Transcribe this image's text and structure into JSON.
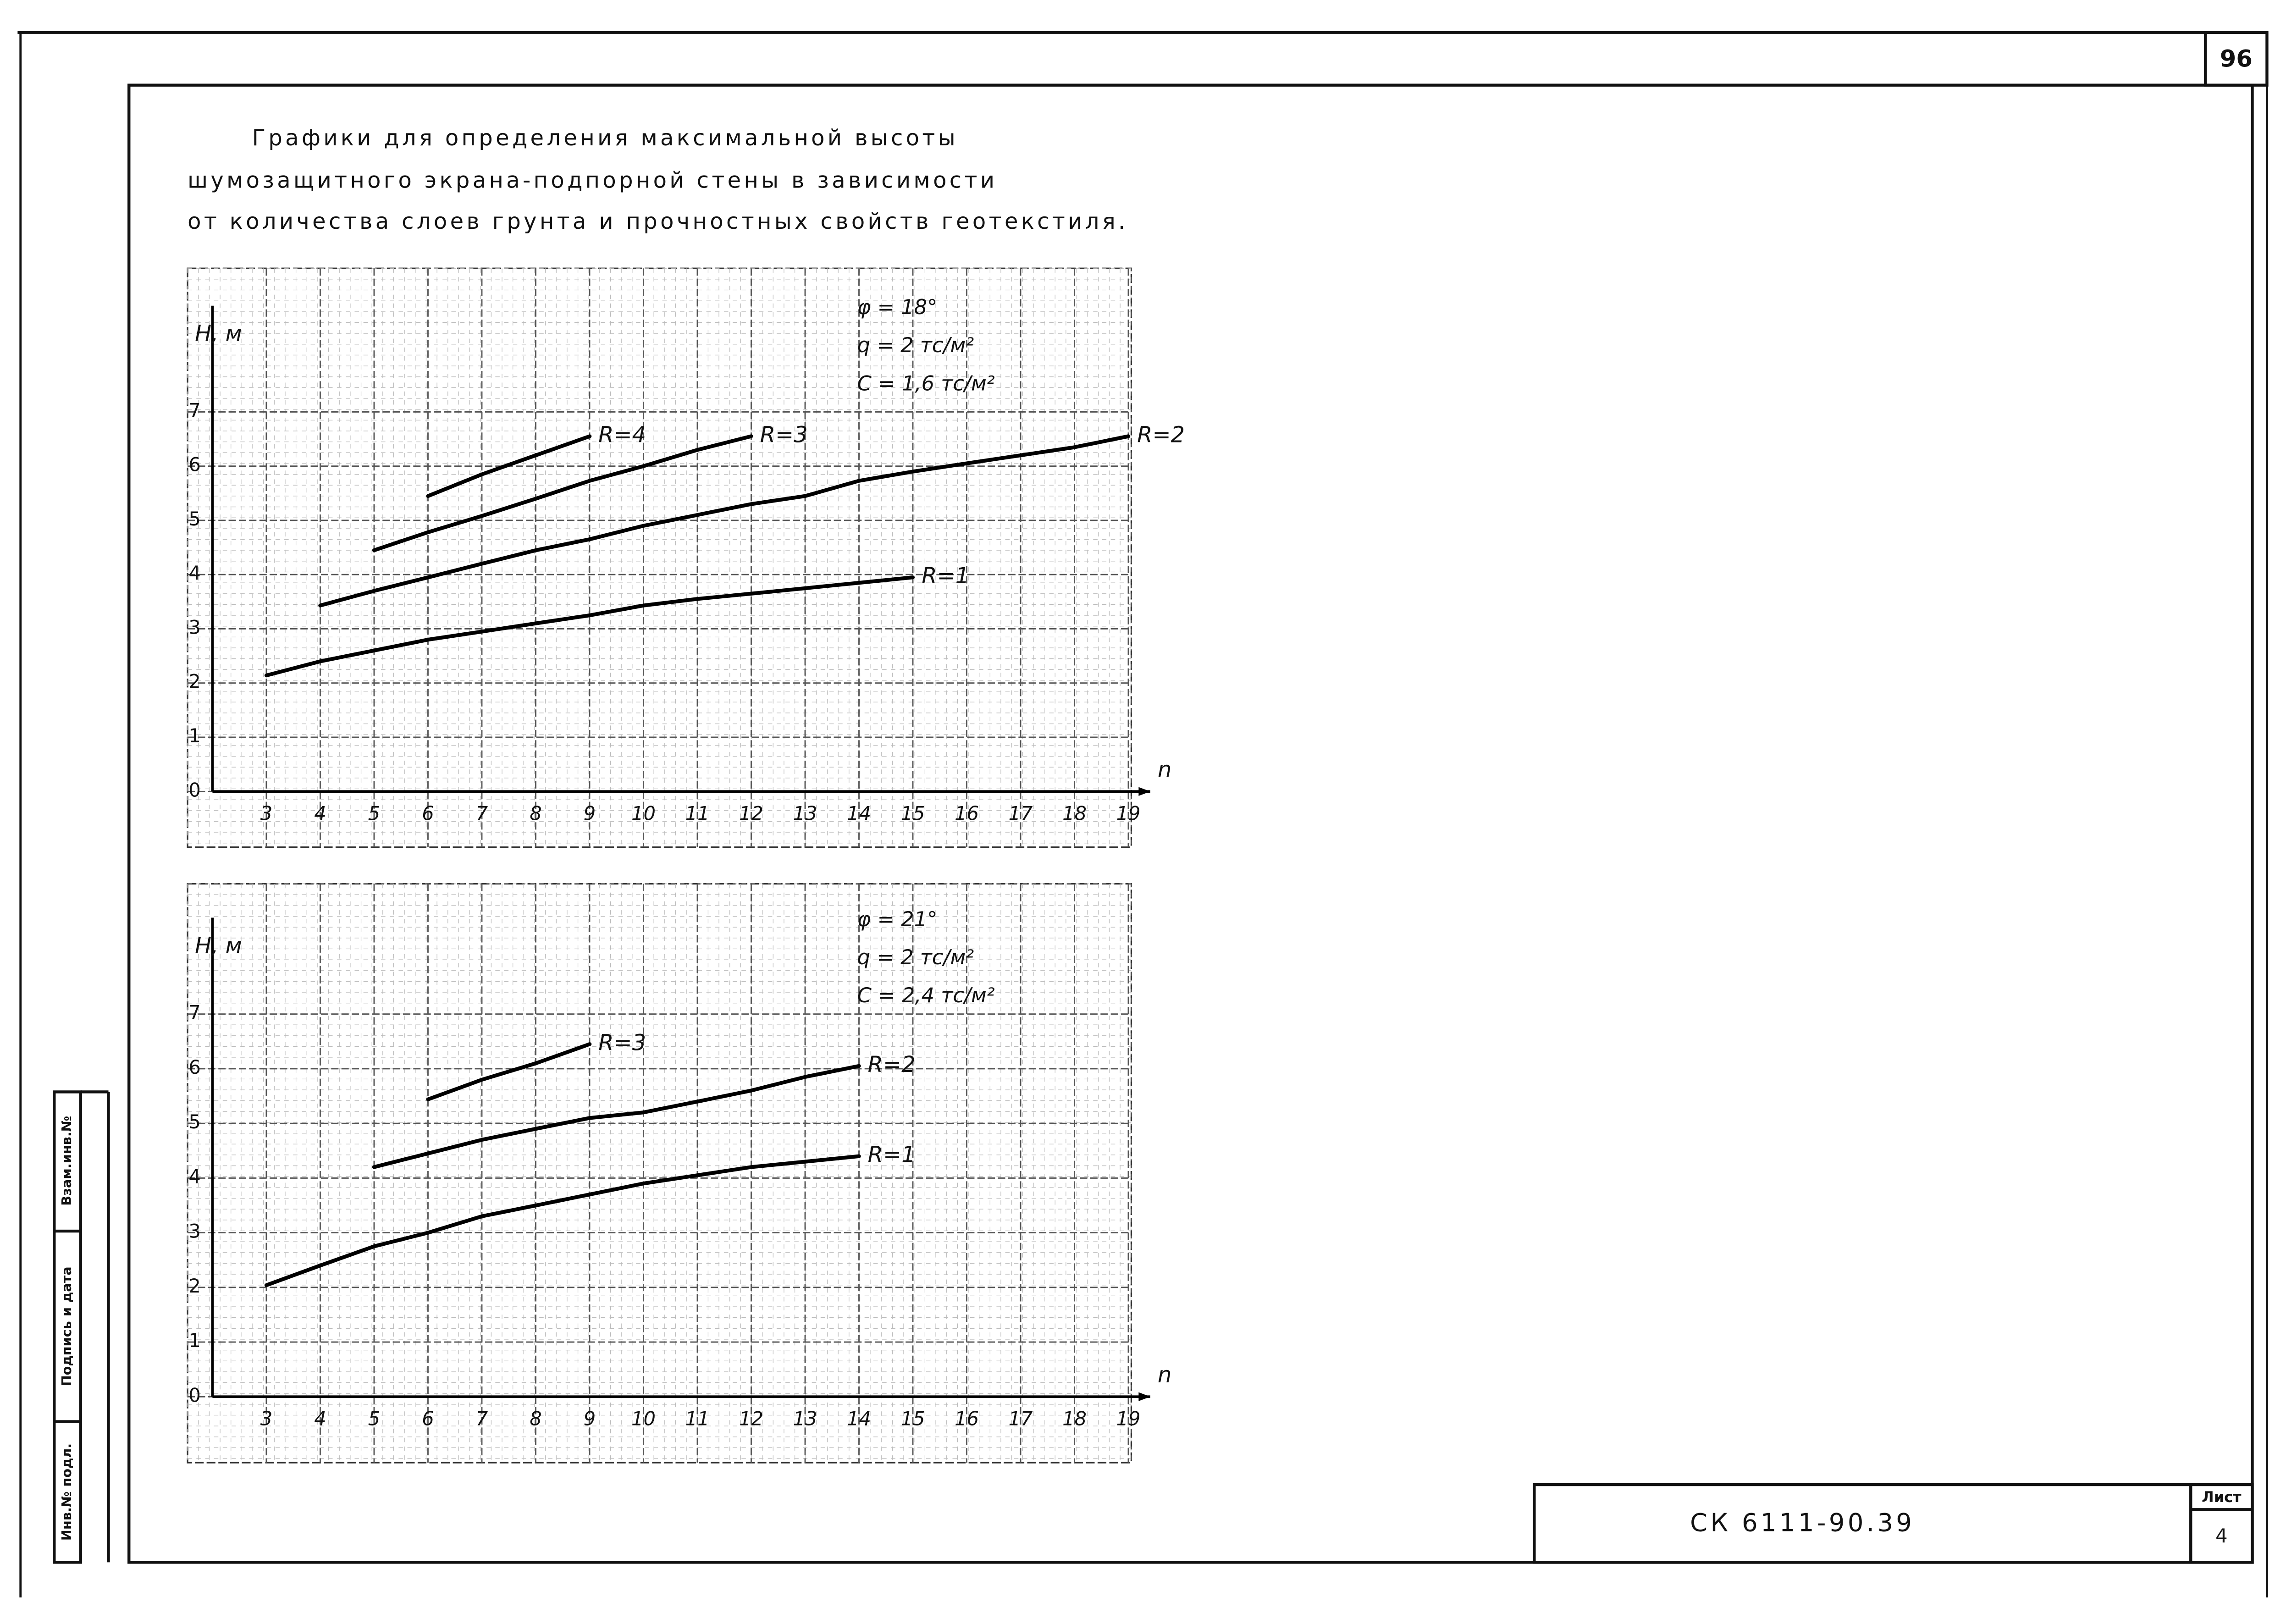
{
  "header": {
    "title": [
      "Графики для определения максимальной высоты",
      "шумозащитного экрана-подпорной стены в зависимости",
      "от количества слоев грунта и прочностных свойств геотекстиля."
    ],
    "page_number": "96"
  },
  "stamp": {
    "code": "СК 6111-90.39",
    "sheet_label": "Лист",
    "sheet": "4"
  },
  "side_labels": [
    "Инв.№ подл.",
    "Подпись и дата",
    "Взам.инв.№"
  ],
  "chart_data": [
    {
      "type": "line",
      "y_label": "H, м",
      "x_label": "n",
      "annotations": [
        "φ = 18°",
        "q = 2 тс/м²",
        "C = 1,6 тс/м²"
      ],
      "x": [
        3,
        4,
        5,
        6,
        7,
        8,
        9,
        10,
        11,
        12,
        13,
        14,
        15,
        16,
        17,
        18,
        19
      ],
      "series": [
        {
          "name": "R=4",
          "color": "#000000",
          "values": [
            null,
            null,
            null,
            5.45,
            5.85,
            6.2,
            6.55,
            null,
            null,
            null,
            null,
            null,
            null,
            null,
            null,
            null,
            null
          ]
        },
        {
          "name": "R=3",
          "color": "#000000",
          "values": [
            null,
            null,
            4.45,
            4.78,
            5.08,
            5.4,
            5.73,
            6.0,
            6.3,
            6.55,
            null,
            null,
            null,
            null,
            null,
            null,
            null
          ]
        },
        {
          "name": "R=2",
          "color": "#000000",
          "values": [
            null,
            3.43,
            3.7,
            3.95,
            4.2,
            4.45,
            4.65,
            4.9,
            5.1,
            5.3,
            5.45,
            5.73,
            5.9,
            6.05,
            6.2,
            6.35,
            6.55
          ]
        },
        {
          "name": "R=1",
          "color": "#000000",
          "values": [
            2.14,
            2.4,
            2.6,
            2.8,
            2.95,
            3.1,
            3.25,
            3.43,
            3.55,
            3.65,
            3.75,
            3.85,
            3.95,
            null,
            null,
            null,
            null
          ]
        }
      ],
      "xlim": [
        2,
        19
      ],
      "xticks": [
        3,
        4,
        5,
        6,
        7,
        8,
        9,
        10,
        11,
        12,
        13,
        14,
        15,
        16,
        17,
        18,
        19
      ],
      "ylim": [
        0,
        9.5
      ],
      "yticks": [
        0,
        1,
        2,
        3,
        4,
        5,
        6,
        7
      ],
      "grid": true
    },
    {
      "type": "line",
      "y_label": "H, м",
      "x_label": "n",
      "annotations": [
        "φ = 21°",
        "q = 2 тс/м²",
        "C = 2,4 тс/м²"
      ],
      "x": [
        3,
        4,
        5,
        6,
        7,
        8,
        9,
        10,
        11,
        12,
        13,
        14,
        15,
        16,
        17,
        18,
        19
      ],
      "series": [
        {
          "name": "R=3",
          "color": "#000000",
          "values": [
            null,
            null,
            null,
            5.44,
            5.8,
            6.1,
            6.45,
            null,
            null,
            null,
            null,
            null,
            null,
            null,
            null,
            null,
            null
          ]
        },
        {
          "name": "R=2",
          "color": "#000000",
          "values": [
            null,
            null,
            4.2,
            4.45,
            4.7,
            4.9,
            5.1,
            5.2,
            5.4,
            5.6,
            5.85,
            6.05,
            null,
            null,
            null,
            null,
            null
          ]
        },
        {
          "name": "R=1",
          "color": "#000000",
          "values": [
            2.04,
            2.4,
            2.75,
            3.0,
            3.3,
            3.5,
            3.7,
            3.9,
            4.05,
            4.2,
            4.3,
            4.4,
            null,
            null,
            null,
            null,
            null
          ]
        }
      ],
      "xlim": [
        2,
        19
      ],
      "xticks": [
        3,
        4,
        5,
        6,
        7,
        8,
        9,
        10,
        11,
        12,
        13,
        14,
        15,
        16,
        17,
        18,
        19
      ],
      "ylim": [
        0,
        9.3
      ],
      "yticks": [
        0,
        1,
        2,
        3,
        4,
        5,
        6,
        7
      ],
      "grid": true
    }
  ]
}
